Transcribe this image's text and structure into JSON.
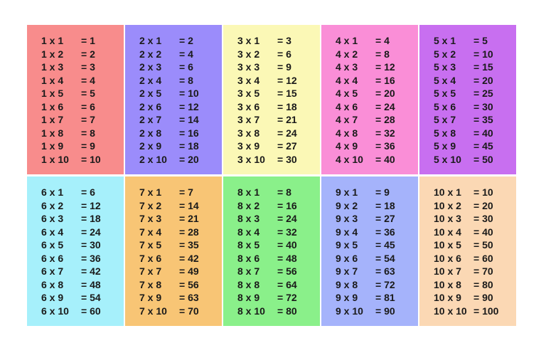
{
  "tables": [
    {
      "color": "#f88c8c",
      "rows": [
        [
          "1 x 1",
          "= 1"
        ],
        [
          "1 x 2",
          "= 2"
        ],
        [
          "1 x 3",
          "= 3"
        ],
        [
          "1 x 4",
          "= 4"
        ],
        [
          "1 x 5",
          "= 5"
        ],
        [
          "1 x 6",
          "= 6"
        ],
        [
          "1 x 7",
          "= 7"
        ],
        [
          "1 x 8",
          "= 8"
        ],
        [
          "1 x 9",
          "= 9"
        ],
        [
          "1 x 10",
          "= 10"
        ]
      ]
    },
    {
      "color": "#9b8cfb",
      "rows": [
        [
          "2 x 1",
          "= 2"
        ],
        [
          "2 x 2",
          "= 4"
        ],
        [
          "2 x 3",
          "= 6"
        ],
        [
          "2 x 4",
          "= 8"
        ],
        [
          "2 x 5",
          "= 10"
        ],
        [
          "2 x 6",
          "= 12"
        ],
        [
          "2 x 7",
          "= 14"
        ],
        [
          "2 x 8",
          "= 16"
        ],
        [
          "2 x 9",
          "= 18"
        ],
        [
          "2 x 10",
          "= 20"
        ]
      ]
    },
    {
      "color": "#fbf8b6",
      "rows": [
        [
          "3 x 1",
          "= 3"
        ],
        [
          "3 x 2",
          "= 6"
        ],
        [
          "3 x 3",
          "= 9"
        ],
        [
          "3 x 4",
          "= 12"
        ],
        [
          "3 x 5",
          "= 15"
        ],
        [
          "3 x 6",
          "= 18"
        ],
        [
          "3 x 7",
          "= 21"
        ],
        [
          "3 x 8",
          "= 24"
        ],
        [
          "3 x 9",
          "= 27"
        ],
        [
          "3 x 10",
          "= 30"
        ]
      ]
    },
    {
      "color": "#fa8ed7",
      "rows": [
        [
          "4 x 1",
          "= 4"
        ],
        [
          "4 x 2",
          "= 8"
        ],
        [
          "4 x 3",
          "= 12"
        ],
        [
          "4 x 4",
          "= 16"
        ],
        [
          "4 x 5",
          "= 20"
        ],
        [
          "4 x 6",
          "= 24"
        ],
        [
          "4 x 7",
          "= 28"
        ],
        [
          "4 x 8",
          "= 32"
        ],
        [
          "4 x 9",
          "= 36"
        ],
        [
          "4 x 10",
          "= 40"
        ]
      ]
    },
    {
      "color": "#c86ff0",
      "rows": [
        [
          "5 x 1",
          "= 5"
        ],
        [
          "5 x 2",
          "= 10"
        ],
        [
          "5 x 3",
          "= 15"
        ],
        [
          "5 x 4",
          "= 20"
        ],
        [
          "5 x 5",
          "= 25"
        ],
        [
          "5 x 6",
          "= 30"
        ],
        [
          "5 x 7",
          "= 35"
        ],
        [
          "5 x 8",
          "= 40"
        ],
        [
          "5 x 9",
          "= 45"
        ],
        [
          "5 x 10",
          "= 50"
        ]
      ]
    },
    {
      "color": "#a6f0fb",
      "rows": [
        [
          "6 x 1",
          "= 6"
        ],
        [
          "6 x 2",
          "= 12"
        ],
        [
          "6 x 3",
          "= 18"
        ],
        [
          "6 x 4",
          "= 24"
        ],
        [
          "6 x 5",
          "= 30"
        ],
        [
          "6 x 6",
          "= 36"
        ],
        [
          "6 x 7",
          "= 42"
        ],
        [
          "6 x 8",
          "= 48"
        ],
        [
          "6 x 9",
          "= 54"
        ],
        [
          "6 x 10",
          "= 60"
        ]
      ]
    },
    {
      "color": "#f8c575",
      "rows": [
        [
          "7 x 1",
          "= 7"
        ],
        [
          "7 x 2",
          "= 14"
        ],
        [
          "7 x 3",
          "= 21"
        ],
        [
          "7 x 4",
          "= 28"
        ],
        [
          "7 x 5",
          "= 35"
        ],
        [
          "7 x 6",
          "= 42"
        ],
        [
          "7 x 7",
          "= 49"
        ],
        [
          "7 x 8",
          "= 56"
        ],
        [
          "7 x 9",
          "= 63"
        ],
        [
          "7 x 10",
          "= 70"
        ]
      ]
    },
    {
      "color": "#8af08a",
      "rows": [
        [
          "8 x 1",
          "= 8"
        ],
        [
          "8 x 2",
          "= 16"
        ],
        [
          "8 x 3",
          "= 24"
        ],
        [
          "8 x 4",
          "= 32"
        ],
        [
          "8 x 5",
          "= 40"
        ],
        [
          "8 x 6",
          "= 48"
        ],
        [
          "8 x 7",
          "= 56"
        ],
        [
          "8 x 8",
          "= 64"
        ],
        [
          "8 x 9",
          "= 72"
        ],
        [
          "8 x 10",
          "= 80"
        ]
      ]
    },
    {
      "color": "#a5b3fb",
      "rows": [
        [
          "9 x 1",
          "= 9"
        ],
        [
          "9 x 2",
          "= 18"
        ],
        [
          "9 x 3",
          "= 27"
        ],
        [
          "9 x 4",
          "= 36"
        ],
        [
          "9 x 5",
          "= 45"
        ],
        [
          "9 x 6",
          "= 54"
        ],
        [
          "9 x 7",
          "= 63"
        ],
        [
          "9 x 8",
          "= 72"
        ],
        [
          "9 x 9",
          "= 81"
        ],
        [
          "9 x 10",
          "= 90"
        ]
      ]
    },
    {
      "color": "#fbd8b4",
      "rows": [
        [
          "10 x 1",
          "= 10"
        ],
        [
          "10 x 2",
          "= 20"
        ],
        [
          "10 x 3",
          "= 30"
        ],
        [
          "10 x 4",
          "= 40"
        ],
        [
          "10 x 5",
          "= 50"
        ],
        [
          "10 x 6",
          "= 60"
        ],
        [
          "10 x 7",
          "= 70"
        ],
        [
          "10 x 8",
          "= 80"
        ],
        [
          "10 x 9",
          "= 90"
        ],
        [
          "10 x 10",
          "= 100"
        ]
      ]
    }
  ]
}
